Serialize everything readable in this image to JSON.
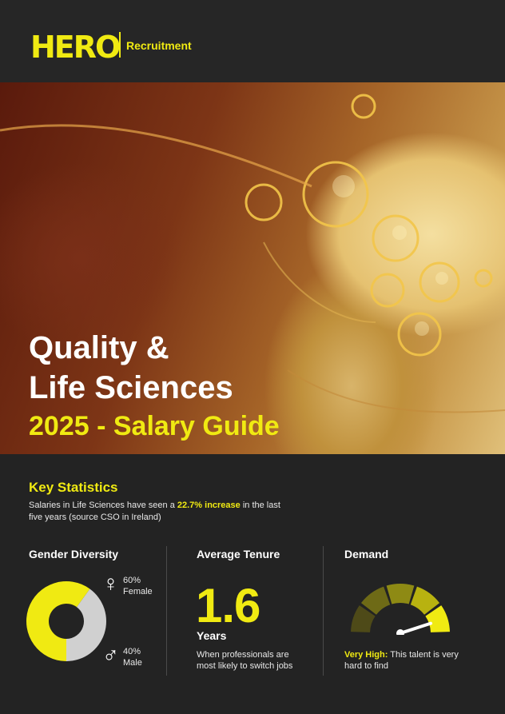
{
  "brand": {
    "name": "HERO",
    "sub": "Recruitment",
    "accent": "#f0ea12"
  },
  "hero": {
    "line1": "Quality &",
    "line2": "Life Sciences",
    "line3": "2025 - Salary Guide"
  },
  "key_stats": {
    "title": "Key Statistics",
    "text_before": "Salaries in Life Sciences have seen a ",
    "highlight": "22.7% increase",
    "text_after": " in the last five years (source CSO in Ireland)"
  },
  "gender": {
    "title": "Gender Diversity",
    "female_pct": "60%",
    "female_label": "Female",
    "male_pct": "40%",
    "male_label": "Male",
    "female_share": 0.6,
    "female_icon": "female-symbol-icon",
    "male_icon": "male-symbol-icon",
    "female_color": "#f0ea12",
    "male_color": "#d0d0d0"
  },
  "tenure": {
    "title": "Average Tenure",
    "value": "1.6",
    "unit": "Years",
    "note": "When professionals are most likely to switch jobs"
  },
  "demand": {
    "title": "Demand",
    "level": "Very High:",
    "note": " This talent is very hard to find",
    "gauge_level": 0.9,
    "gauge_colors": [
      "#4e4a18",
      "#6e6a16",
      "#8e8a14",
      "#b8b210",
      "#f0ea12"
    ]
  }
}
